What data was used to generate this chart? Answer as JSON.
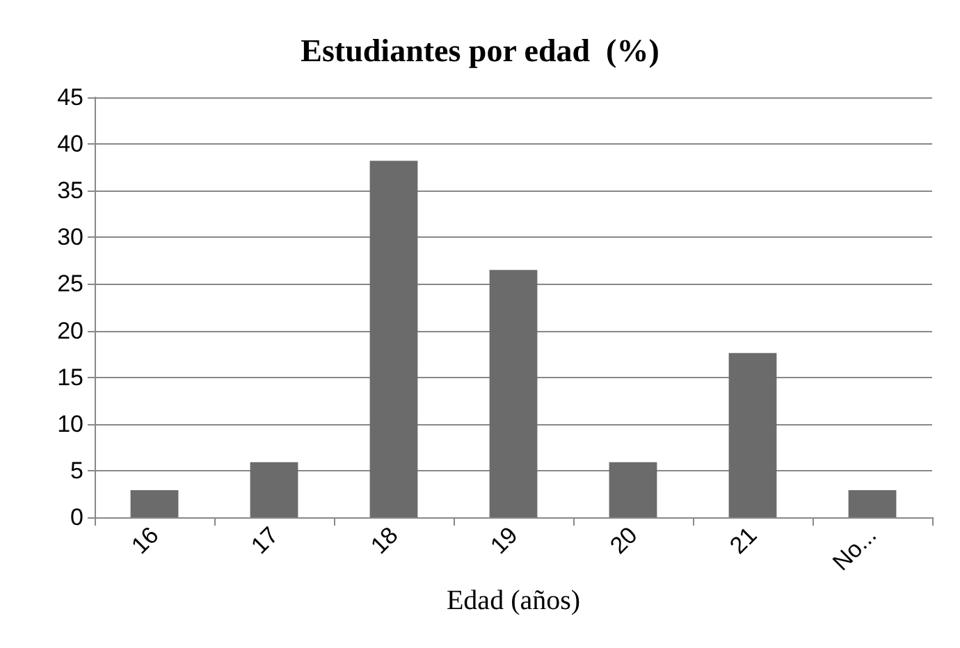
{
  "chart_data": {
    "type": "bar",
    "title": "Estudiantes por edad  (%)",
    "xlabel": "Edad (años)",
    "categories": [
      "16",
      "17",
      "18",
      "19",
      "20",
      "21",
      "No..."
    ],
    "values": [
      2.9,
      5.9,
      38.2,
      26.5,
      5.9,
      17.6,
      2.9
    ],
    "color": "#6b6b6b",
    "ylim": [
      0,
      45
    ],
    "yticks": [
      0,
      5,
      10,
      15,
      20,
      25,
      30,
      35,
      40,
      45
    ],
    "grid": "y"
  }
}
